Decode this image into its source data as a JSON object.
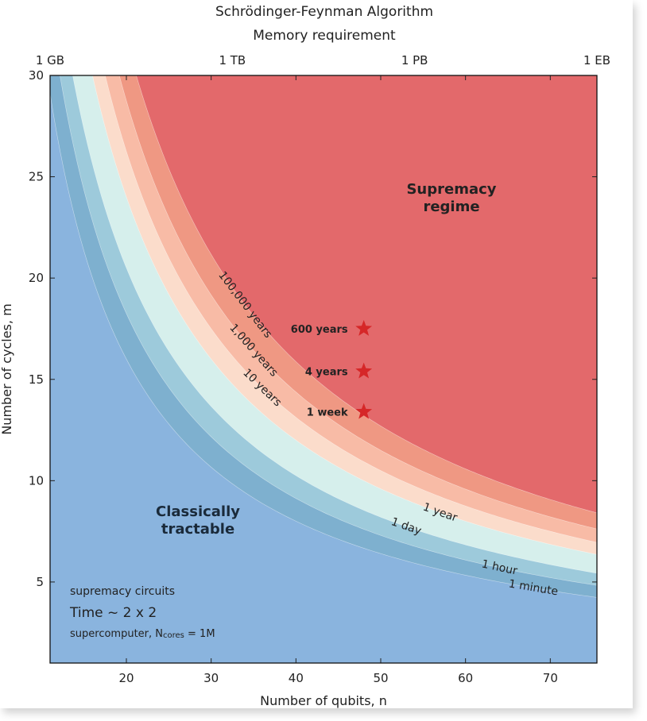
{
  "chart_data": {
    "type": "area",
    "title": "Schrödinger-Feynman Algorithm",
    "top_axis_label": "Memory requirement",
    "top_ticks": [
      "1 GB",
      "1 TB",
      "1 PB",
      "1 EB"
    ],
    "xlabel": "Number of qubits, n",
    "ylabel": "Number of cycles, m",
    "xlim": [
      11,
      75.5
    ],
    "ylim": [
      1,
      30
    ],
    "xticks": [
      20,
      30,
      40,
      50,
      60,
      70
    ],
    "yticks": [
      5,
      10,
      15,
      20,
      25,
      30
    ],
    "regions": [
      {
        "label": "1 minute",
        "color": "#7eb0cf"
      },
      {
        "label": "1 hour",
        "color": "#9dcadb"
      },
      {
        "label": "1 day",
        "color": "#d6efec"
      },
      {
        "label": "1 year",
        "color": "#fbdccb"
      },
      {
        "label": "10 years",
        "color": "#f8bba6"
      },
      {
        "label": "1,000 years",
        "color": "#ef9883"
      },
      {
        "label": "100,000 years",
        "color": "#e3696b"
      }
    ],
    "base_color": "#8ab4de",
    "contours": [
      {
        "label": "1 minute",
        "k": 320
      },
      {
        "label": "1 hour",
        "k": 365
      },
      {
        "label": "1 day",
        "k": 410
      },
      {
        "label": "1 year",
        "k": 480
      },
      {
        "label": "10 years",
        "k": 525
      },
      {
        "label": "1,000 years",
        "k": 575
      },
      {
        "label": "100,000 years",
        "k": 635
      }
    ],
    "stars": [
      {
        "x": 48,
        "y": 17.5,
        "label": "600 years"
      },
      {
        "x": 48,
        "y": 15.4,
        "label": "4 years"
      },
      {
        "x": 48,
        "y": 13.4,
        "label": "1 week"
      }
    ],
    "region_labels": {
      "supremacy": [
        "Supremacy",
        "regime"
      ],
      "classical": [
        "Classically",
        "tractable"
      ]
    },
    "notes": {
      "line1": "supremacy circuits",
      "line2": "Time ~ 2 x 2",
      "line3_prefix": "supercomputer, N",
      "line3_sub": "cores",
      "line3_suffix": " = 1M"
    },
    "star_color": "#d62728"
  }
}
